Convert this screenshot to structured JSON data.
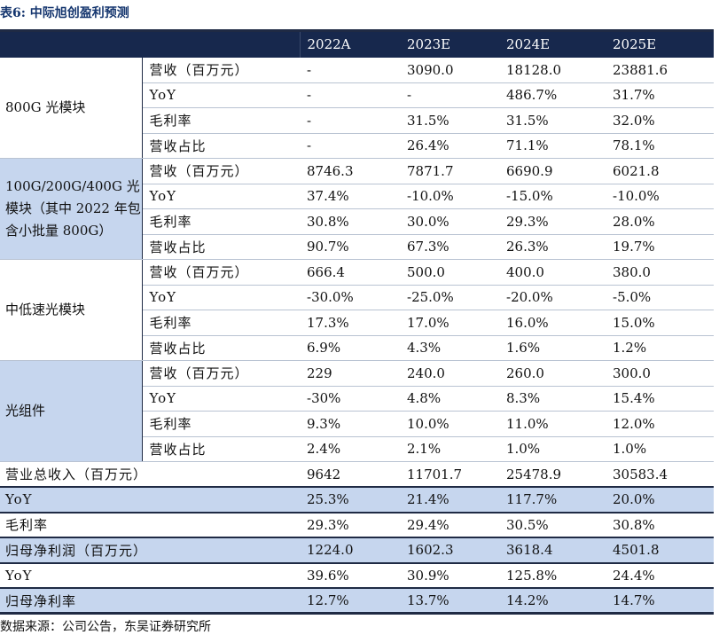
{
  "title": "表6:  中际旭创盈利预测",
  "columns": [
    "2022A",
    "2023E",
    "2024E",
    "2025E"
  ],
  "groups": [
    {
      "name": "800G 光模块",
      "shaded": false,
      "rows": [
        {
          "metric": "营收（百万元）",
          "values": [
            "-",
            "3090.0",
            "18128.0",
            "23881.6"
          ]
        },
        {
          "metric": "YoY",
          "values": [
            "-",
            "-",
            "486.7%",
            "31.7%"
          ]
        },
        {
          "metric": "毛利率",
          "values": [
            "-",
            "31.5%",
            "31.5%",
            "32.0%"
          ]
        },
        {
          "metric": "营收占比",
          "values": [
            "-",
            "26.4%",
            "71.1%",
            "78.1%"
          ]
        }
      ]
    },
    {
      "name": "100G/200G/400G 光模块（其中 2022 年包含小批量 800G）",
      "shaded": true,
      "rows": [
        {
          "metric": "营收（百万元）",
          "values": [
            "8746.3",
            "7871.7",
            "6690.9",
            "6021.8"
          ]
        },
        {
          "metric": "YoY",
          "values": [
            "37.4%",
            "-10.0%",
            "-15.0%",
            "-10.0%"
          ]
        },
        {
          "metric": "毛利率",
          "values": [
            "30.8%",
            "30.0%",
            "29.3%",
            "28.0%"
          ]
        },
        {
          "metric": "营收占比",
          "values": [
            "90.7%",
            "67.3%",
            "26.3%",
            "19.7%"
          ]
        }
      ]
    },
    {
      "name": "中低速光模块",
      "shaded": false,
      "rows": [
        {
          "metric": "营收（百万元）",
          "values": [
            "666.4",
            "500.0",
            "400.0",
            "380.0"
          ]
        },
        {
          "metric": "YoY",
          "values": [
            "-30.0%",
            "-25.0%",
            "-20.0%",
            "-5.0%"
          ]
        },
        {
          "metric": "毛利率",
          "values": [
            "17.3%",
            "17.0%",
            "16.0%",
            "15.0%"
          ]
        },
        {
          "metric": "营收占比",
          "values": [
            "6.9%",
            "4.3%",
            "1.6%",
            "1.2%"
          ]
        }
      ]
    },
    {
      "name": "光组件",
      "shaded": true,
      "rows": [
        {
          "metric": "营收（百万元）",
          "values": [
            "229",
            "240.0",
            "260.0",
            "300.0"
          ]
        },
        {
          "metric": "YoY",
          "values": [
            "-30%",
            "4.8%",
            "8.3%",
            "15.4%"
          ]
        },
        {
          "metric": "毛利率",
          "values": [
            "9.3%",
            "10.0%",
            "11.0%",
            "12.0%"
          ]
        },
        {
          "metric": "营收占比",
          "values": [
            "2.4%",
            "2.1%",
            "1.0%",
            "1.0%"
          ]
        }
      ]
    }
  ],
  "totals": [
    {
      "label": "营业总收入（百万元）",
      "shaded": false,
      "values": [
        "9642",
        "11701.7",
        "25478.9",
        "30583.4"
      ]
    },
    {
      "label": "YoY",
      "shaded": true,
      "values": [
        "25.3%",
        "21.4%",
        "117.7%",
        "20.0%"
      ]
    },
    {
      "label": "毛利率",
      "shaded": false,
      "values": [
        "29.3%",
        "29.4%",
        "30.5%",
        "30.8%"
      ]
    },
    {
      "label": "归母净利润（百万元）",
      "shaded": true,
      "values": [
        "1224.0",
        "1602.3",
        "3618.4",
        "4501.8"
      ]
    },
    {
      "label": "YoY",
      "shaded": false,
      "values": [
        "39.6%",
        "30.9%",
        "125.8%",
        "24.4%"
      ]
    },
    {
      "label": "归母净利率",
      "shaded": true,
      "values": [
        "12.7%",
        "13.7%",
        "14.2%",
        "14.7%"
      ]
    }
  ],
  "source": "数据来源：公司公告，东吴证券研究所"
}
